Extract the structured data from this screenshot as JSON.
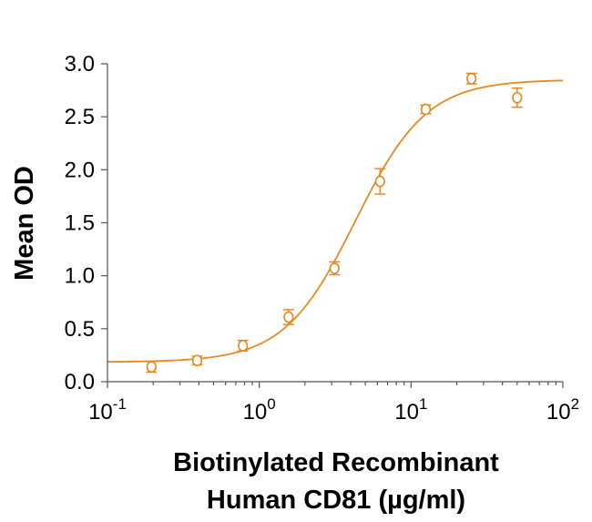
{
  "chart_data": {
    "type": "scatter",
    "title": "",
    "xlabel_line1": "Biotinylated Recombinant",
    "xlabel_line2": "Human CD81 (µg/ml)",
    "ylabel": "Mean OD",
    "xscale": "log",
    "xlim": [
      0.1,
      100
    ],
    "ylim": [
      0.0,
      3.0
    ],
    "x_ticks": [
      {
        "value": 0.1,
        "base": "10",
        "exp": "-1"
      },
      {
        "value": 1,
        "base": "10",
        "exp": "0"
      },
      {
        "value": 10,
        "base": "10",
        "exp": "1"
      },
      {
        "value": 100,
        "base": "10",
        "exp": "2"
      }
    ],
    "y_ticks": [
      {
        "value": 0.0,
        "label": "0.0"
      },
      {
        "value": 0.5,
        "label": "0.5"
      },
      {
        "value": 1.0,
        "label": "1.0"
      },
      {
        "value": 1.5,
        "label": "1.5"
      },
      {
        "value": 2.0,
        "label": "2.0"
      },
      {
        "value": 2.5,
        "label": "2.5"
      },
      {
        "value": 3.0,
        "label": "3.0"
      }
    ],
    "series": [
      {
        "name": "Mean OD",
        "color": "#E8891E",
        "x": [
          0.195,
          0.39,
          0.78,
          1.56,
          3.13,
          6.25,
          12.5,
          25,
          50
        ],
        "y": [
          0.14,
          0.2,
          0.34,
          0.61,
          1.07,
          1.89,
          2.57,
          2.86,
          2.68
        ],
        "error": [
          0.05,
          0.04,
          0.05,
          0.07,
          0.06,
          0.12,
          0.04,
          0.05,
          0.09
        ]
      }
    ],
    "fit": {
      "model": "4PL",
      "bottom": 0.185,
      "top": 2.85,
      "ec50": 4.3,
      "hill": 1.85,
      "color": "#E8891E"
    }
  }
}
